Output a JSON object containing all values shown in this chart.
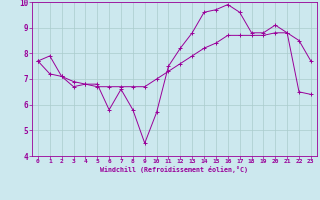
{
  "xlabel": "Windchill (Refroidissement éolien,°C)",
  "bg_color": "#cce8ee",
  "line_color": "#990099",
  "grid_color": "#aacccc",
  "xlim": [
    -0.5,
    23.5
  ],
  "ylim": [
    4,
    10
  ],
  "yticks": [
    4,
    5,
    6,
    7,
    8,
    9,
    10
  ],
  "xticks": [
    0,
    1,
    2,
    3,
    4,
    5,
    6,
    7,
    8,
    9,
    10,
    11,
    12,
    13,
    14,
    15,
    16,
    17,
    18,
    19,
    20,
    21,
    22,
    23
  ],
  "series1_x": [
    0,
    1,
    2,
    3,
    4,
    5,
    6,
    7,
    8,
    9,
    10,
    11,
    12,
    13,
    14,
    15,
    16,
    17,
    18,
    19,
    20,
    21,
    22,
    23
  ],
  "series1_y": [
    7.7,
    7.9,
    7.1,
    6.7,
    6.8,
    6.8,
    5.8,
    6.6,
    5.8,
    4.5,
    5.7,
    7.5,
    8.2,
    8.8,
    9.6,
    9.7,
    9.9,
    9.6,
    8.8,
    8.8,
    9.1,
    8.8,
    8.5,
    7.7
  ],
  "series2_x": [
    0,
    1,
    2,
    3,
    4,
    5,
    6,
    7,
    8,
    9,
    10,
    11,
    12,
    13,
    14,
    15,
    16,
    17,
    18,
    19,
    20,
    21,
    22,
    23
  ],
  "series2_y": [
    7.7,
    7.2,
    7.1,
    6.9,
    6.8,
    6.7,
    6.7,
    6.7,
    6.7,
    6.7,
    7.0,
    7.3,
    7.6,
    7.9,
    8.2,
    8.4,
    8.7,
    8.7,
    8.7,
    8.7,
    8.8,
    8.8,
    6.5,
    6.4
  ]
}
